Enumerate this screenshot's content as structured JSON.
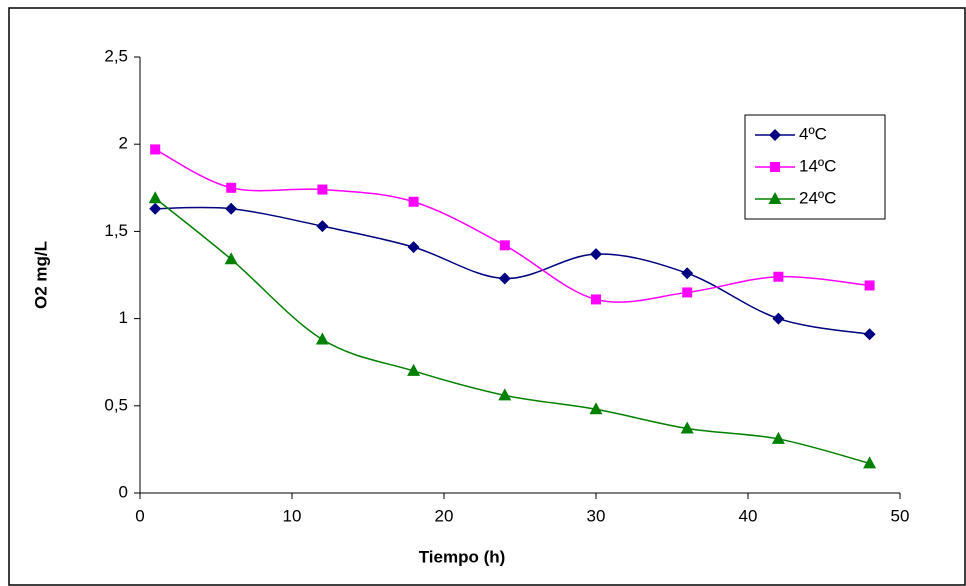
{
  "chart_data": {
    "type": "line",
    "xlabel": "Tiempo (h)",
    "ylabel": "O2 mg/L",
    "x": [
      1,
      6,
      12,
      18,
      24,
      30,
      36,
      42,
      48
    ],
    "series": [
      {
        "name": "4ºC",
        "color": "#000080",
        "marker": "diamond",
        "values": [
          1.63,
          1.63,
          1.53,
          1.41,
          1.23,
          1.37,
          1.26,
          1.0,
          0.91
        ]
      },
      {
        "name": "14ºC",
        "color": "#ff00ff",
        "marker": "square",
        "values": [
          1.97,
          1.75,
          1.74,
          1.67,
          1.42,
          1.11,
          1.15,
          1.24,
          1.19
        ]
      },
      {
        "name": "24ºC",
        "color": "#008000",
        "marker": "triangle",
        "values": [
          1.69,
          1.34,
          0.88,
          0.7,
          0.56,
          0.48,
          0.37,
          0.31,
          0.17
        ]
      }
    ],
    "xlim": [
      0,
      50
    ],
    "xticks": [
      0,
      10,
      20,
      30,
      40,
      50
    ],
    "ylim": [
      0,
      2.5
    ],
    "yticks": [
      0,
      {
        "value": 0.5,
        "label": "0,5"
      },
      1,
      {
        "value": 1.5,
        "label": "1,5"
      },
      2,
      {
        "value": 2.5,
        "label": "2,5"
      }
    ],
    "smooth": true,
    "legend": "top-right"
  }
}
